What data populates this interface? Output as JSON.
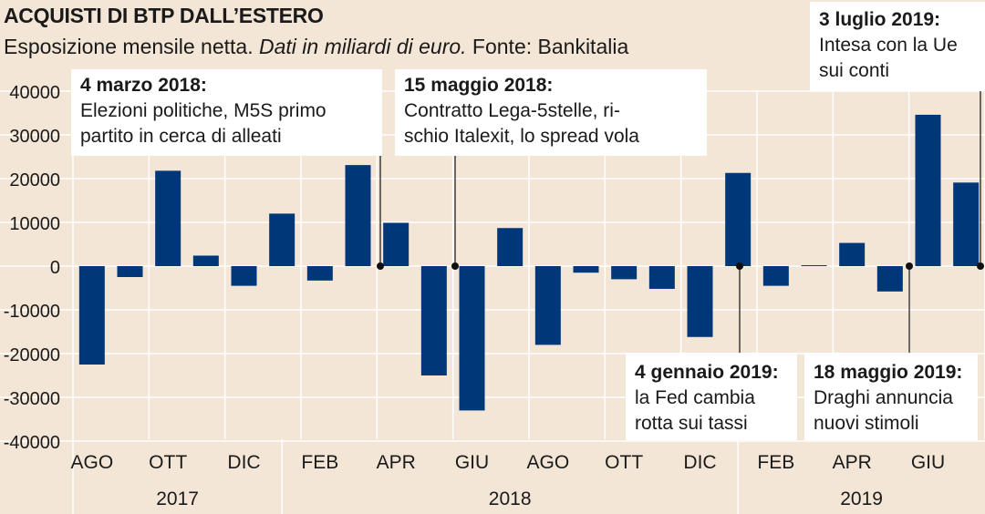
{
  "title": "ACQUISTI DI BTP DALL’ESTERO",
  "subtitle": {
    "part1": "Esposizione mensile netta.",
    "part2": "Dati in miliardi di euro.",
    "part3": "Fonte: Bankitalia"
  },
  "colors": {
    "bar": "#003779",
    "background": "#f3e6d6",
    "grid": "#ffffff"
  },
  "chart_data": {
    "type": "bar",
    "title": "ACQUISTI DI BTP DALL’ESTERO",
    "ylim": [
      -40000,
      40000
    ],
    "yticks": [
      40000,
      30000,
      20000,
      10000,
      0,
      -10000,
      -20000,
      -30000,
      -40000
    ],
    "ytick_labels": [
      "40000",
      "30000",
      "20000",
      "10000",
      "0",
      "-10000",
      "-20000",
      "-30000",
      "-40000"
    ],
    "months": [
      "2017-08",
      "2017-09",
      "2017-10",
      "2017-11",
      "2017-12",
      "2018-01",
      "2018-02",
      "2018-03",
      "2018-04",
      "2018-05",
      "2018-06",
      "2018-07",
      "2018-08",
      "2018-09",
      "2018-10",
      "2018-11",
      "2018-12",
      "2019-01",
      "2019-02",
      "2019-03",
      "2019-04",
      "2019-05",
      "2019-06",
      "2019-07"
    ],
    "values": [
      -22500,
      -2500,
      21800,
      2400,
      -4500,
      12000,
      -3300,
      23100,
      9900,
      -25000,
      -33000,
      8700,
      -18000,
      -1500,
      -3000,
      -5200,
      -16200,
      21300,
      -4500,
      200,
      5300,
      -5800,
      34600,
      19100
    ],
    "x_tick_labels": [
      "AGO",
      "OTT",
      "DIC",
      "FEB",
      "APR",
      "GIU",
      "AGO",
      "OTT",
      "DIC",
      "FEB",
      "APR",
      "GIU"
    ],
    "years": [
      "2017",
      "2018",
      "2019"
    ],
    "annotations": [
      {
        "date": "4 marzo 2018:",
        "line1": "Elezioni politiche, M5S primo",
        "line2": "partito in cerca di alleati"
      },
      {
        "date": "15 maggio 2018:",
        "line1": "Contratto Lega-5stelle, ri-",
        "line2": "schio Italexit, lo spread vola"
      },
      {
        "date": "4 gennaio 2019:",
        "line1": "la Fed cambia",
        "line2": "rotta sui tassi"
      },
      {
        "date": "18 maggio 2019:",
        "line1": "Draghi annuncia",
        "line2": "nuovi stimoli"
      },
      {
        "date": "3 luglio 2019:",
        "line1": "Intesa con la Ue",
        "line2": "sui conti"
      }
    ]
  }
}
